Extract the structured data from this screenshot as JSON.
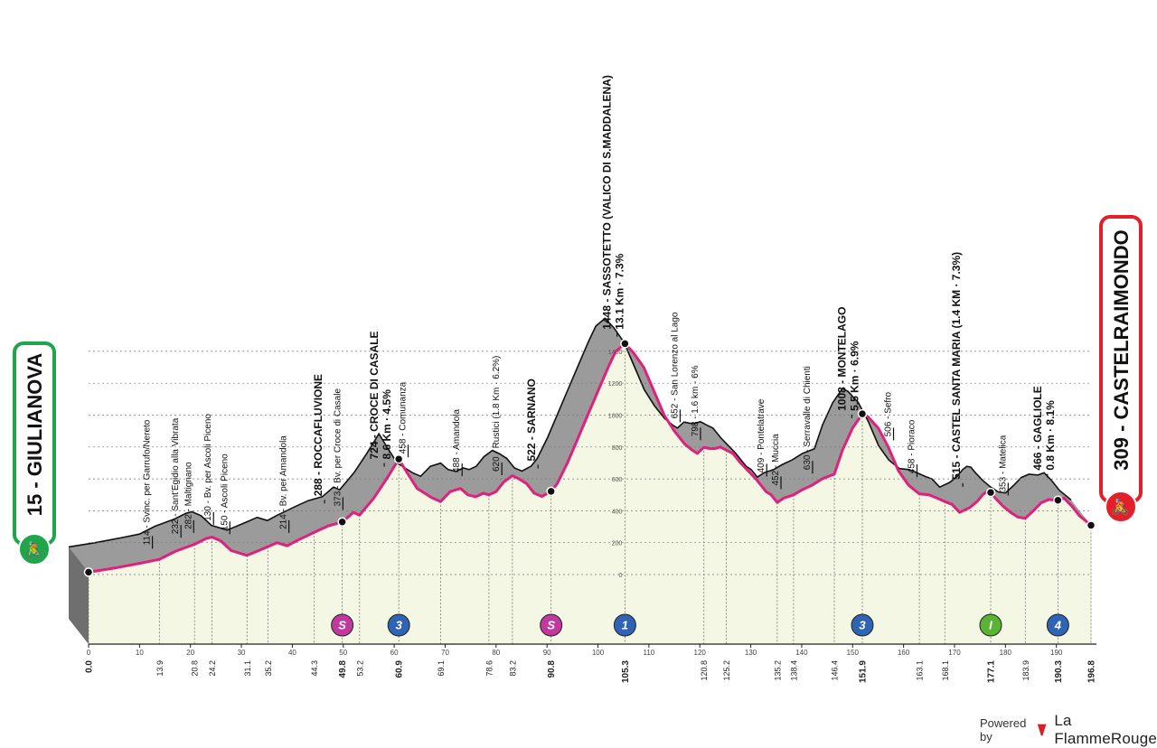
{
  "chart_data": {
    "type": "area",
    "start": {
      "label": "15 - GIULIANOVA",
      "color": "#1fa64a"
    },
    "finish": {
      "label": "309 - CASTELRAIMONDO",
      "color": "#e3202a"
    },
    "x_unit": "km",
    "y_unit": "m",
    "xlim": [
      0,
      196.8
    ],
    "ylim": [
      -120,
      1450
    ],
    "x_ticks": [
      0,
      10,
      20,
      30,
      40,
      50,
      60,
      70,
      80,
      90,
      100,
      110,
      120,
      130,
      140,
      150,
      160,
      170,
      180,
      190
    ],
    "y_ticks": [
      0,
      200,
      400,
      600,
      800,
      1000,
      1200,
      1400
    ],
    "km_markers": [
      "0.0",
      "13.9",
      "20.8",
      "24.2",
      "31.1",
      "35.2",
      "44.3",
      "49.8",
      "53.2",
      "60.9",
      "69.1",
      "78.6",
      "83.2",
      "90.8",
      "105.3",
      "120.8",
      "125.2",
      "135.2",
      "138.4",
      "146.4",
      "151.9",
      "163.1",
      "168.1",
      "177.1",
      "183.9",
      "190.3",
      "196.8"
    ],
    "km_markers_bold": [
      "0.0",
      "49.8",
      "60.9",
      "90.8",
      "105.3",
      "151.9",
      "177.1",
      "190.3",
      "196.8"
    ],
    "profile": [
      [
        0,
        15
      ],
      [
        5,
        40
      ],
      [
        10,
        70
      ],
      [
        13.9,
        95
      ],
      [
        17,
        145
      ],
      [
        20.8,
        190
      ],
      [
        23,
        225
      ],
      [
        24.2,
        235
      ],
      [
        26,
        210
      ],
      [
        28,
        150
      ],
      [
        31.1,
        120
      ],
      [
        33,
        145
      ],
      [
        35.2,
        175
      ],
      [
        37,
        200
      ],
      [
        39,
        180
      ],
      [
        41,
        214
      ],
      [
        43,
        245
      ],
      [
        44.3,
        265
      ],
      [
        47,
        305
      ],
      [
        49.8,
        330
      ],
      [
        52,
        390
      ],
      [
        53.2,
        373
      ],
      [
        56,
        480
      ],
      [
        58.5,
        600
      ],
      [
        60.9,
        724
      ],
      [
        62.5,
        640
      ],
      [
        64.5,
        540
      ],
      [
        66,
        510
      ],
      [
        67.5,
        480
      ],
      [
        69.1,
        458
      ],
      [
        71,
        520
      ],
      [
        73,
        540
      ],
      [
        74.5,
        500
      ],
      [
        76,
        488
      ],
      [
        77.5,
        510
      ],
      [
        78.6,
        500
      ],
      [
        80,
        520
      ],
      [
        81.5,
        580
      ],
      [
        83.2,
        620
      ],
      [
        84.5,
        600
      ],
      [
        86,
        570
      ],
      [
        87.5,
        510
      ],
      [
        89,
        490
      ],
      [
        90.8,
        522
      ],
      [
        92,
        570
      ],
      [
        94,
        700
      ],
      [
        96,
        850
      ],
      [
        98,
        1000
      ],
      [
        100,
        1150
      ],
      [
        102,
        1300
      ],
      [
        103.5,
        1400
      ],
      [
        105.3,
        1448
      ],
      [
        107,
        1390
      ],
      [
        109,
        1300
      ],
      [
        111,
        1150
      ],
      [
        113,
        1000
      ],
      [
        115,
        900
      ],
      [
        117,
        820
      ],
      [
        118.5,
        780
      ],
      [
        119.5,
        760
      ],
      [
        120.8,
        798
      ],
      [
        122,
        790
      ],
      [
        123,
        790
      ],
      [
        124,
        800
      ],
      [
        125.2,
        780
      ],
      [
        126.5,
        760
      ],
      [
        128,
        700
      ],
      [
        129.5,
        650
      ],
      [
        131,
        600
      ],
      [
        133,
        520
      ],
      [
        134,
        500
      ],
      [
        135.2,
        452
      ],
      [
        136.5,
        480
      ],
      [
        138.4,
        500
      ],
      [
        140,
        530
      ],
      [
        142,
        560
      ],
      [
        144,
        600
      ],
      [
        146.4,
        630
      ],
      [
        148,
        780
      ],
      [
        150,
        920
      ],
      [
        151.9,
        1008
      ],
      [
        153,
        990
      ],
      [
        155,
        920
      ],
      [
        157,
        800
      ],
      [
        159,
        650
      ],
      [
        161,
        560
      ],
      [
        163.1,
        506
      ],
      [
        165,
        500
      ],
      [
        166.5,
        480
      ],
      [
        168.1,
        458
      ],
      [
        169.5,
        440
      ],
      [
        171,
        390
      ],
      [
        173,
        420
      ],
      [
        174.5,
        460
      ],
      [
        175.5,
        500
      ],
      [
        176.3,
        520
      ],
      [
        177.1,
        515
      ],
      [
        178,
        480
      ],
      [
        179.5,
        430
      ],
      [
        181,
        390
      ],
      [
        182.5,
        360
      ],
      [
        183.9,
        353
      ],
      [
        185.5,
        400
      ],
      [
        187,
        450
      ],
      [
        188.5,
        470
      ],
      [
        190.3,
        466
      ],
      [
        191.5,
        480
      ],
      [
        193,
        430
      ],
      [
        194.5,
        370
      ],
      [
        196.8,
        309
      ]
    ],
    "labels": [
      {
        "km": 12.0,
        "text": "114 - Svinc. per Garrufo/Nereto",
        "bold": false
      },
      {
        "km": 17.6,
        "text": "232 - Sant'Egidio alla Vibrata",
        "bold": false
      },
      {
        "km": 20.1,
        "text": "282 - Maltignano",
        "bold": false
      },
      {
        "km": 24.0,
        "text": "130 - Bv. per Ascoli Piceno",
        "bold": false
      },
      {
        "km": 27.2,
        "text": "150 - Ascoli Piceno",
        "bold": false
      },
      {
        "km": 38.8,
        "text": "214 - Bv. per Amandola",
        "bold": false
      },
      {
        "km": 45.8,
        "text": "288 - ROCCAFLUVIONE",
        "bold": true
      },
      {
        "km": 49.4,
        "text": "373 - Bv. per Croce di Casale",
        "bold": false
      },
      {
        "km": 56.8,
        "text": "724 - CROCE DI CASALE",
        "sub": "8.6 Km · 4.5%",
        "bold": true
      },
      {
        "km": 62.2,
        "text": "458 - Comunanza",
        "bold": false
      },
      {
        "km": 72.8,
        "text": "488 - Amandola",
        "bold": false
      },
      {
        "km": 80.6,
        "text": "620 - Rustici (1.8 Km · 6.2%)",
        "bold": false
      },
      {
        "km": 87.7,
        "text": "522 - SARNANO",
        "bold": true
      },
      {
        "km": 102.5,
        "text": "1448 - SASSOTETTO (VALICO DI S.MADDALENA)",
        "sub": "13.1 Km · 7.3%",
        "bold": true
      },
      {
        "km": 115.6,
        "text": "652 - San Lorenzo al Lago",
        "bold": false
      },
      {
        "km": 119.6,
        "text": "798 - 1.6 km - 6%",
        "bold": false
      },
      {
        "km": 132.6,
        "text": "409 - Pontelatrave",
        "bold": false
      },
      {
        "km": 135.4,
        "text": "452 - Muccia",
        "bold": false
      },
      {
        "km": 141.6,
        "text": "630 - Serravalle di Chienti",
        "bold": false
      },
      {
        "km": 148.6,
        "text": "1008 - MONTELAGO",
        "sub": "5.5 Km · 6.9%",
        "bold": true
      },
      {
        "km": 157.5,
        "text": "506 - Sefro",
        "bold": false
      },
      {
        "km": 162.1,
        "text": "458 - Pioraco",
        "bold": false
      },
      {
        "km": 171.1,
        "text": "515 - CASTEL SANTA MARIA (1.4 KM · 7.3%)",
        "bold": true
      },
      {
        "km": 180.0,
        "text": "353 - Matelica",
        "bold": false
      },
      {
        "km": 187.0,
        "text": "466 - GAGLIOLE",
        "sub": "0.8 Km · 8.1%",
        "bold": true
      }
    ],
    "icons": [
      {
        "km": 49.8,
        "text": "S",
        "color": "#c0399f"
      },
      {
        "km": 60.9,
        "text": "3",
        "color": "#2f63b3"
      },
      {
        "km": 90.8,
        "text": "S",
        "color": "#c0399f"
      },
      {
        "km": 105.3,
        "text": "1",
        "color": "#2f63b3"
      },
      {
        "km": 151.9,
        "text": "3",
        "color": "#2f63b3"
      },
      {
        "km": 177.1,
        "text": "I",
        "color": "#5bb336"
      },
      {
        "km": 190.3,
        "text": "4",
        "color": "#2f63b3"
      }
    ],
    "colors": {
      "terrain": "#9b9b9b",
      "terrain_edge": "#111111",
      "area_fill": "#f4f7e4",
      "route_line": "#e0217b"
    }
  },
  "footer": {
    "credit_label": "Powered by",
    "credit_brand": "La FlammeRouge"
  }
}
